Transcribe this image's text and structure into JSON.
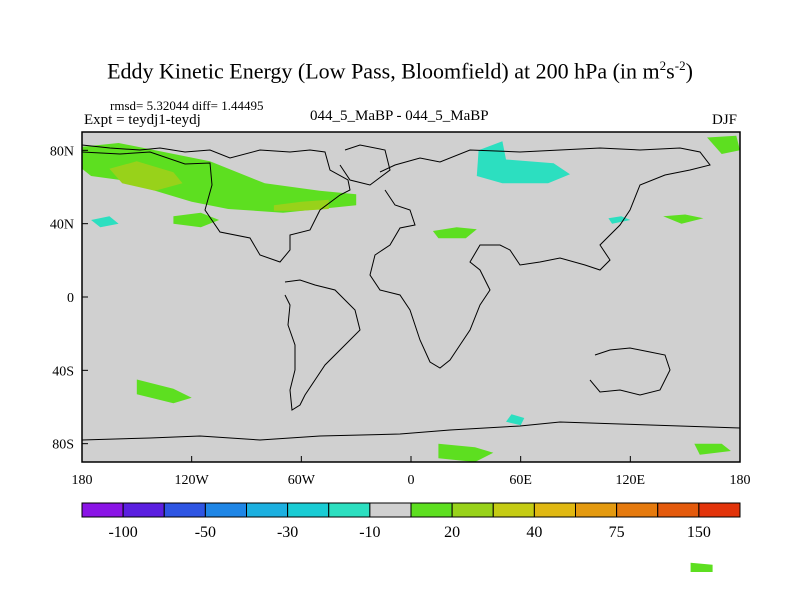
{
  "title": {
    "main": "Eddy Kinetic Energy (Low Pass, Bloomfield) at 200 hPa (in m",
    "sup1": "2",
    "mid": "s",
    "sup2": "-2",
    "close": ")"
  },
  "stats": "rmsd= 5.32044 diff= 1.44495",
  "expt": "Expt = teydj1-teydj",
  "center_label": "044_5_MaBP - 044_5_MaBP",
  "season": "DJF",
  "chart_data": {
    "type": "heatmap",
    "title": "Eddy Kinetic Energy (Low Pass, Bloomfield) at 200 hPa (in m2s-2)",
    "x_range": [
      -180,
      180
    ],
    "y_range": [
      -90,
      90
    ],
    "x_ticks": [
      {
        "value": -180,
        "label": "180"
      },
      {
        "value": -120,
        "label": "120W"
      },
      {
        "value": -60,
        "label": "60W"
      },
      {
        "value": 0,
        "label": "0"
      },
      {
        "value": 60,
        "label": "60E"
      },
      {
        "value": 120,
        "label": "120E"
      },
      {
        "value": 180,
        "label": "180"
      }
    ],
    "y_ticks": [
      {
        "value": 80,
        "label": "80N"
      },
      {
        "value": 40,
        "label": "40N"
      },
      {
        "value": 0,
        "label": "0"
      },
      {
        "value": -40,
        "label": "40S"
      },
      {
        "value": -80,
        "label": "80S"
      }
    ],
    "colorbar": {
      "colors": [
        "#8a14e6",
        "#5b1fe0",
        "#2e55e3",
        "#1f86e6",
        "#1cb0e0",
        "#19ccd4",
        "#2cdfc0",
        "#d0d0d0",
        "#5ddf20",
        "#98d21a",
        "#c5cc14",
        "#e0b812",
        "#e49a10",
        "#e57a0e",
        "#e45a0c",
        "#e2330a"
      ],
      "labels": [
        {
          "boundary": 1,
          "label": "-100"
        },
        {
          "boundary": 3,
          "label": "-50"
        },
        {
          "boundary": 5,
          "label": "-30"
        },
        {
          "boundary": 7,
          "label": "-10"
        },
        {
          "boundary": 9,
          "label": "20"
        },
        {
          "boundary": 11,
          "label": "40"
        },
        {
          "boundary": 13,
          "label": "75"
        },
        {
          "boundary": 15,
          "label": "150"
        }
      ]
    },
    "anomaly_regions": [
      {
        "name": "north-america-arctic-positive",
        "level": "10 to 20",
        "color": "#5ddf20",
        "polygon": [
          [
            -180,
            82
          ],
          [
            -160,
            84
          ],
          [
            -140,
            80
          ],
          [
            -110,
            74
          ],
          [
            -80,
            62
          ],
          [
            -50,
            58
          ],
          [
            -30,
            56
          ],
          [
            -30,
            50
          ],
          [
            -50,
            48
          ],
          [
            -70,
            46
          ],
          [
            -100,
            48
          ],
          [
            -120,
            52
          ],
          [
            -140,
            58
          ],
          [
            -160,
            64
          ],
          [
            -175,
            66
          ],
          [
            -180,
            70
          ]
        ]
      },
      {
        "name": "north-pacific-stronger-positive",
        "level": "20 to 40",
        "color": "#98d21a",
        "polygon": [
          [
            -165,
            70
          ],
          [
            -150,
            74
          ],
          [
            -130,
            68
          ],
          [
            -125,
            62
          ],
          [
            -140,
            58
          ],
          [
            -158,
            62
          ]
        ]
      },
      {
        "name": "north-atlantic-stronger-positive",
        "level": "20 to 40",
        "color": "#98d21a",
        "polygon": [
          [
            -75,
            50
          ],
          [
            -60,
            52
          ],
          [
            -45,
            53
          ],
          [
            -45,
            48
          ],
          [
            -60,
            47
          ],
          [
            -75,
            47
          ]
        ]
      },
      {
        "name": "east-pacific-positive",
        "level": "10 to 20",
        "color": "#5ddf20",
        "polygon": [
          [
            -130,
            44
          ],
          [
            -115,
            46
          ],
          [
            -105,
            42
          ],
          [
            -115,
            38
          ],
          [
            -130,
            40
          ]
        ]
      },
      {
        "name": "arctic-siberia-negative",
        "level": "-10 to -20",
        "color": "#2cdfc0",
        "polygon": [
          [
            37,
            80
          ],
          [
            50,
            85
          ],
          [
            52,
            75
          ],
          [
            78,
            73
          ],
          [
            87,
            67
          ],
          [
            75,
            62
          ],
          [
            50,
            62
          ],
          [
            36,
            66
          ]
        ]
      },
      {
        "name": "mediterranean-positive",
        "level": "10 to 20",
        "color": "#5ddf20",
        "polygon": [
          [
            12,
            36
          ],
          [
            25,
            38
          ],
          [
            36,
            37
          ],
          [
            30,
            32
          ],
          [
            15,
            32
          ]
        ]
      },
      {
        "name": "pacific-north-positive",
        "level": "10 to 20",
        "color": "#5ddf20",
        "polygon": [
          [
            138,
            44
          ],
          [
            150,
            45
          ],
          [
            160,
            43
          ],
          [
            148,
            40
          ]
        ]
      },
      {
        "name": "pacific-north-negative",
        "level": "-10 to -20",
        "color": "#2cdfc0",
        "polygon": [
          [
            108,
            43
          ],
          [
            115,
            44
          ],
          [
            120,
            42
          ],
          [
            110,
            40
          ]
        ]
      },
      {
        "name": "north-pacific-negative-west",
        "level": "-10 to -20",
        "color": "#2cdfc0",
        "polygon": [
          [
            -175,
            42
          ],
          [
            -165,
            44
          ],
          [
            -160,
            40
          ],
          [
            -170,
            38
          ]
        ]
      },
      {
        "name": "arctic-far-east-positive",
        "level": "10 to 20",
        "color": "#5ddf20",
        "polygon": [
          [
            162,
            87
          ],
          [
            178,
            88
          ],
          [
            180,
            80
          ],
          [
            170,
            78
          ]
        ]
      },
      {
        "name": "south-pacific-positive",
        "level": "10 to 20",
        "color": "#5ddf20",
        "polygon": [
          [
            -150,
            -45
          ],
          [
            -130,
            -50
          ],
          [
            -120,
            -55
          ],
          [
            -130,
            -58
          ],
          [
            -150,
            -53
          ]
        ]
      },
      {
        "name": "southern-indian-positive",
        "level": "10 to 20",
        "color": "#5ddf20",
        "polygon": [
          [
            15,
            -80
          ],
          [
            35,
            -82
          ],
          [
            45,
            -85
          ],
          [
            35,
            -90
          ],
          [
            15,
            -88
          ]
        ]
      },
      {
        "name": "southern-indian-negative",
        "level": "-10 to -20",
        "color": "#2cdfc0",
        "polygon": [
          [
            55,
            -64
          ],
          [
            62,
            -66
          ],
          [
            60,
            -70
          ],
          [
            52,
            -68
          ]
        ]
      },
      {
        "name": "australia-south-positive",
        "level": "10 to 20",
        "color": "#5ddf20",
        "polygon": [
          [
            155,
            -80
          ],
          [
            170,
            -80
          ],
          [
            175,
            -84
          ],
          [
            158,
            -86
          ]
        ]
      },
      {
        "name": "antarctic-pacific-positive",
        "level": "10 to 20",
        "color": "#5ddf20",
        "polygon": [
          [
            153,
            -145
          ],
          [
            165,
            -146
          ],
          [
            165,
            -150
          ],
          [
            153,
            -150
          ]
        ]
      }
    ],
    "colorbar_ticks": [
      "-100",
      "-50",
      "-30",
      "-10",
      "20",
      "40",
      "75",
      "150"
    ]
  }
}
